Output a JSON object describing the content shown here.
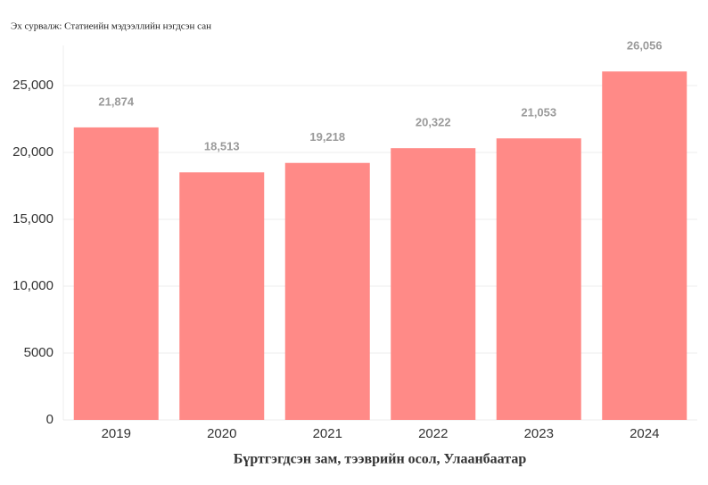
{
  "chart_data": {
    "type": "bar",
    "source": "Эх сурвалж: Статиеийн мэдээллийн нэгдсэн сан",
    "x_label": "Бүртгэгдсэн зам, тээврийн осол, Улаанбаатар",
    "categories": [
      "2019",
      "2020",
      "2021",
      "2022",
      "2023",
      "2024"
    ],
    "values": [
      21874,
      18513,
      19218,
      20322,
      21053,
      26056
    ],
    "value_labels": [
      "21,874",
      "18,513",
      "19,218",
      "20,322",
      "21,053",
      "26,056"
    ],
    "color": "#ff8a87",
    "ylim": [
      0,
      28000
    ],
    "yticks": [
      0,
      5000,
      {
        "value": 10000,
        "label": "10,000"
      },
      {
        "value": 15000,
        "label": "15,000"
      },
      {
        "value": 20000,
        "label": "20,000"
      },
      {
        "value": 25000,
        "label": "25,000"
      }
    ],
    "grid": true
  }
}
